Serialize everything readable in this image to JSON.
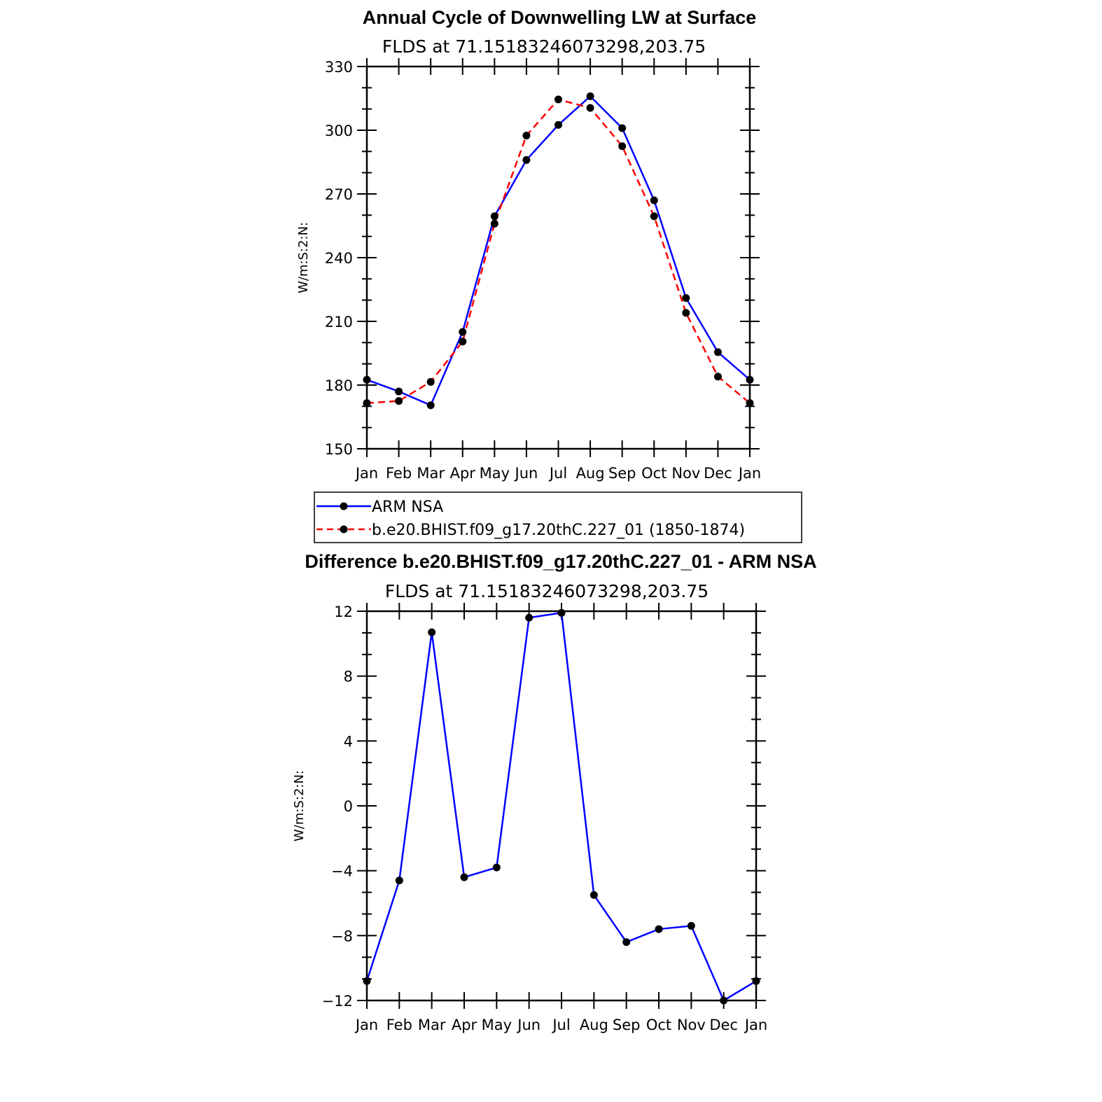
{
  "chart_data": [
    {
      "type": "line",
      "title": "Annual Cycle of Downwelling LW at Surface",
      "subtitle": "FLDS at 71.15183246073298,203.75",
      "ylabel": "W/m:S:2:N:",
      "ylim": [
        150,
        330
      ],
      "yticks": [
        150,
        180,
        210,
        240,
        270,
        300,
        330
      ],
      "categories": [
        "Jan",
        "Feb",
        "Mar",
        "Apr",
        "May",
        "Jun",
        "Jul",
        "Aug",
        "Sep",
        "Oct",
        "Nov",
        "Dec",
        "Jan"
      ],
      "series": [
        {
          "name": "ARM NSA",
          "color": "#0000ff",
          "dash": "solid",
          "values": [
            182.5,
            177,
            170.5,
            205,
            259.5,
            286,
            302.5,
            316,
            301,
            267,
            221,
            195.5,
            182.5
          ]
        },
        {
          "name": "b.e20.BHIST.f09_g17.20thC.227_01 (1850-1874)",
          "color": "#ff0000",
          "dash": "dashed",
          "values": [
            171.5,
            172.5,
            181.5,
            200.5,
            256,
            297.5,
            314.5,
            310.5,
            292.5,
            259.5,
            214,
            184,
            171.5
          ]
        }
      ],
      "legend": "below"
    },
    {
      "type": "line",
      "title": "Difference b.e20.BHIST.f09_g17.20thC.227_01 - ARM NSA",
      "subtitle": "FLDS at 71.15183246073298,203.75",
      "ylabel": "W/m:S:2:N:",
      "ylim": [
        -12,
        12
      ],
      "yticks": [
        -12,
        -8,
        -4,
        0,
        4,
        8,
        12
      ],
      "categories": [
        "Jan",
        "Feb",
        "Mar",
        "Apr",
        "May",
        "Jun",
        "Jul",
        "Aug",
        "Sep",
        "Oct",
        "Nov",
        "Dec",
        "Jan"
      ],
      "series": [
        {
          "color": "#0000ff",
          "dash": "solid",
          "values": [
            -10.8,
            -4.6,
            10.7,
            -4.4,
            -3.8,
            11.6,
            11.9,
            -5.5,
            -8.4,
            -7.6,
            -7.4,
            -12,
            -10.8
          ]
        }
      ]
    }
  ]
}
